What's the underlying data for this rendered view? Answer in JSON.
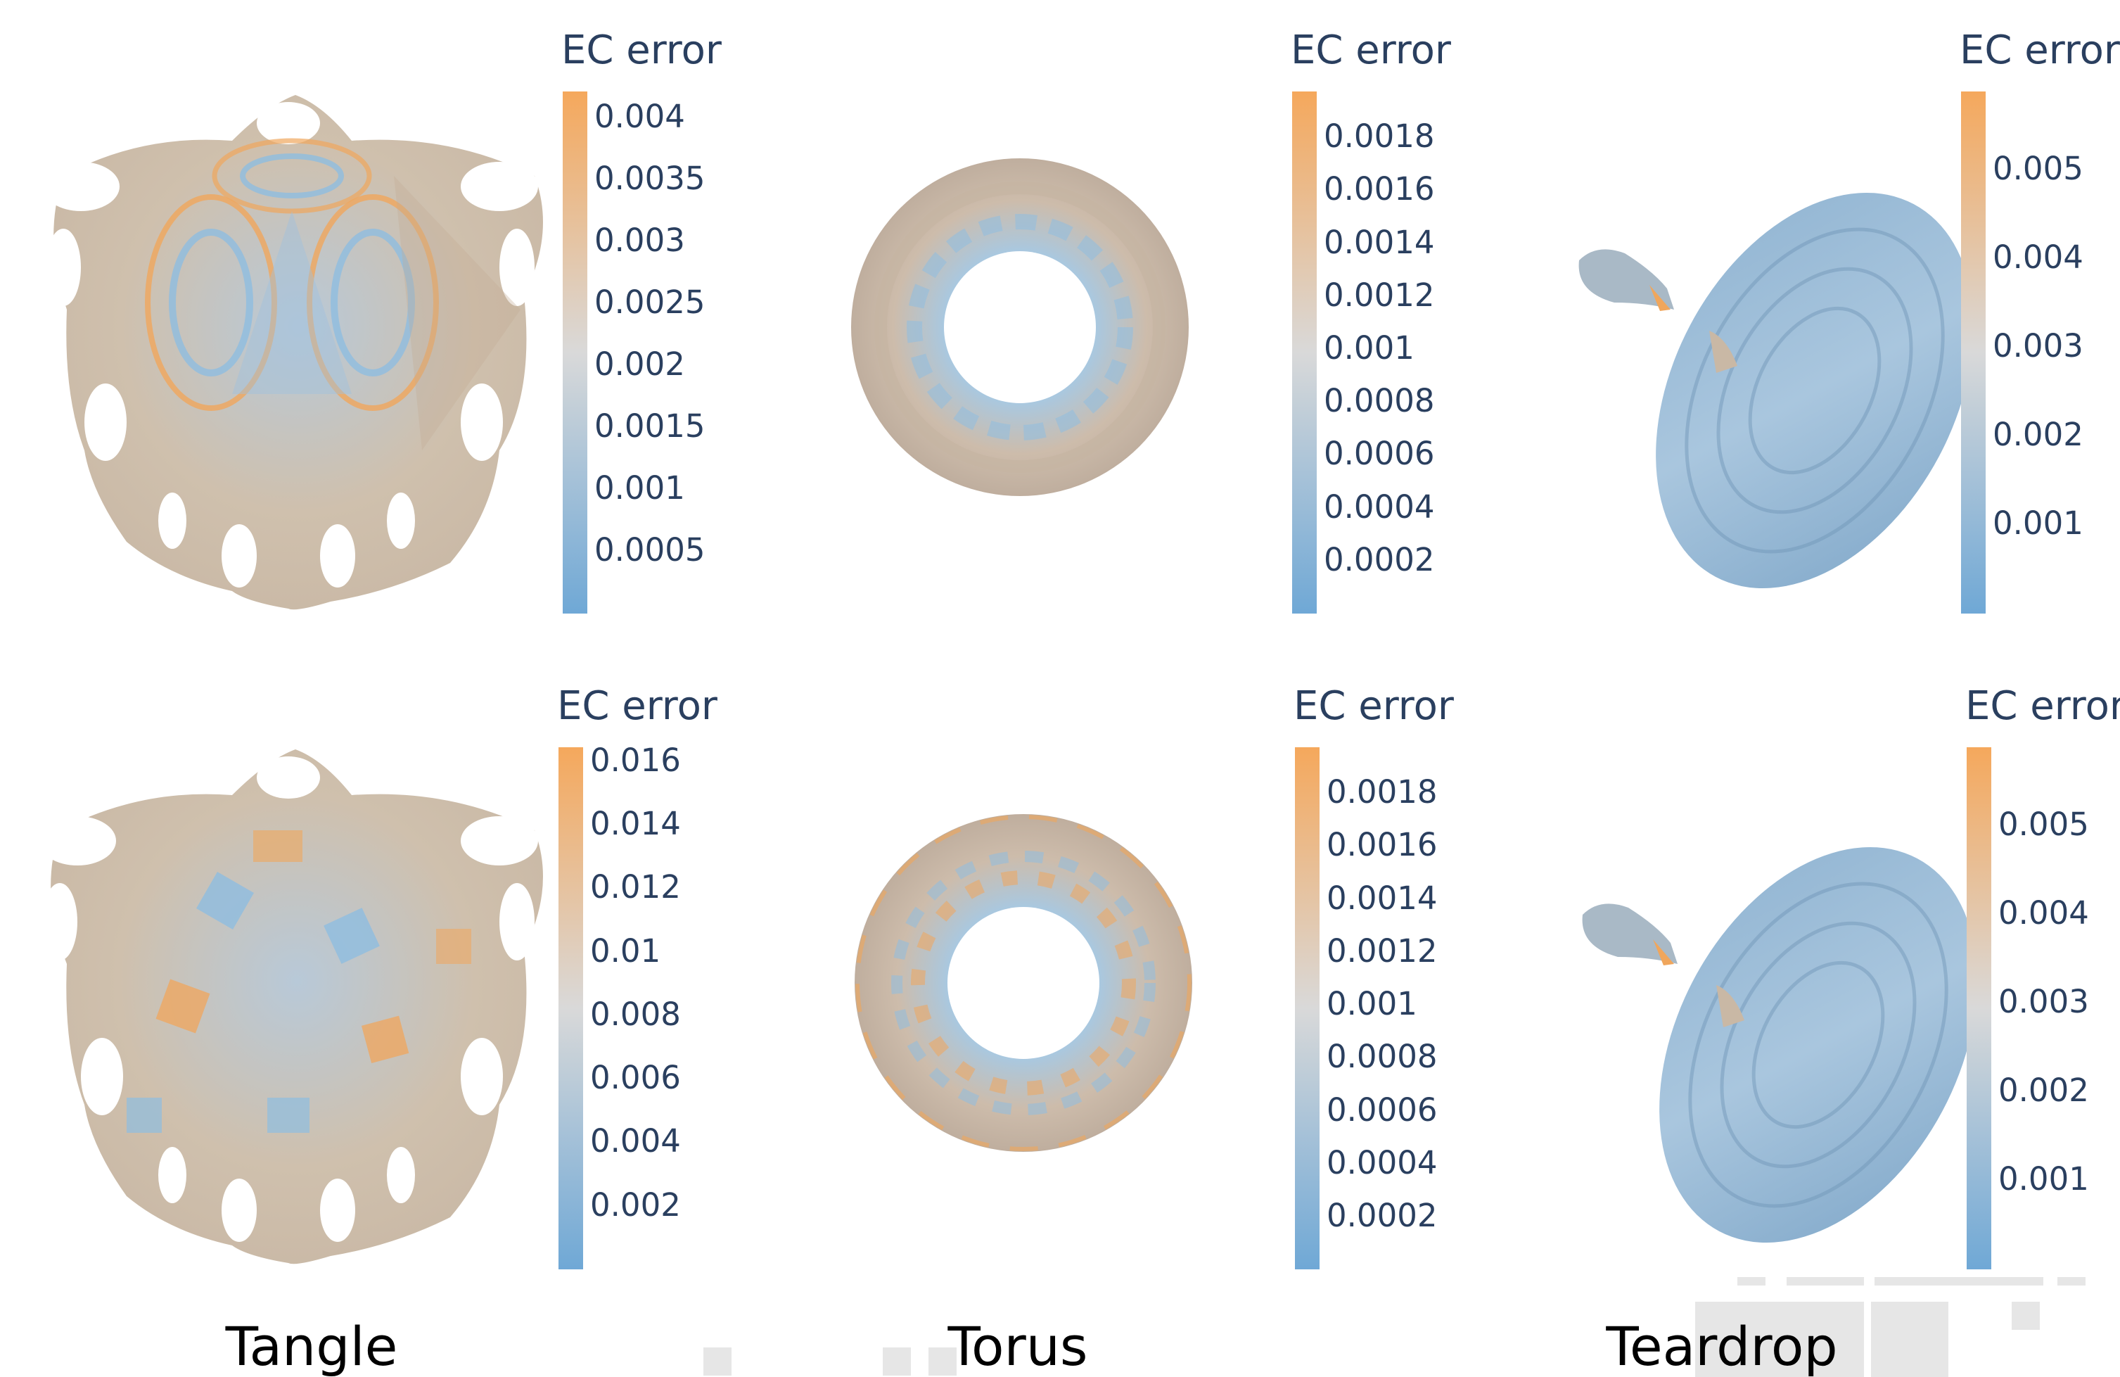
{
  "labels": [
    "Tangle",
    "Torus",
    "Teardrop"
  ],
  "colorbar_title": "EC error",
  "colors": {
    "low": "#6fa8d6",
    "mid": "#d9d9d9",
    "high": "#f5a85c",
    "surface_base": "#c9b8a5",
    "surface_blue": "#8fbde0",
    "surface_orange": "#f0a65c",
    "text": "#2a3f5f"
  },
  "colorbars": [
    {
      "panel": "tangle-top",
      "title": "EC error",
      "ticks": [
        "0.004",
        "0.0035",
        "0.003",
        "0.0025",
        "0.002",
        "0.0015",
        "0.001",
        "0.0005"
      ]
    },
    {
      "panel": "torus-top",
      "title": "EC error",
      "ticks": [
        "0.0018",
        "0.0016",
        "0.0014",
        "0.0012",
        "0.001",
        "0.0008",
        "0.0006",
        "0.0004",
        "0.0002"
      ]
    },
    {
      "panel": "teardrop-top",
      "title": "EC error",
      "ticks": [
        "0.005",
        "0.004",
        "0.003",
        "0.002",
        "0.001"
      ]
    },
    {
      "panel": "tangle-bottom",
      "title": "EC error",
      "ticks": [
        "0.016",
        "0.014",
        "0.012",
        "0.01",
        "0.008",
        "0.006",
        "0.004",
        "0.002"
      ]
    },
    {
      "panel": "torus-bottom",
      "title": "EC error",
      "ticks": [
        "0.0018",
        "0.0016",
        "0.0014",
        "0.0012",
        "0.001",
        "0.0008",
        "0.0006",
        "0.0004",
        "0.0002"
      ]
    },
    {
      "panel": "teardrop-bottom",
      "title": "EC error",
      "ticks": [
        "0.005",
        "0.004",
        "0.003",
        "0.002",
        "0.001"
      ]
    }
  ]
}
